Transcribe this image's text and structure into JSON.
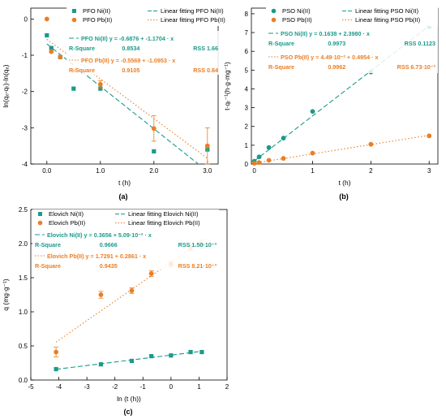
{
  "figure": {
    "colors": {
      "ni": "#1a9a8a",
      "pb": "#ec7d22",
      "axis": "#000000"
    }
  },
  "chart_data": [
    {
      "panel": "a",
      "caption": "(a)",
      "type": "scatter",
      "xlabel": "t (h)",
      "ylabel": "ln(qₑ-qₜ)-ln(qₑ)",
      "xlim": [
        -0.3,
        3.2
      ],
      "ylim": [
        -4,
        0.3
      ],
      "xticks": [
        0.0,
        1.0,
        2.0,
        3.0
      ],
      "xtick_labels": [
        "0.0",
        "1.0",
        "2.0",
        "3.0"
      ],
      "yticks": [
        -4,
        -3,
        -2,
        -1,
        0
      ],
      "ytick_labels": [
        "-4",
        "-3",
        "-2",
        "-1",
        "0"
      ],
      "series": [
        {
          "name": "PFO Ni(II)",
          "marker": "square",
          "color": "#1a9a8a",
          "x": [
            0.0,
            0.083,
            0.25,
            0.5,
            1.0,
            2.0,
            3.0
          ],
          "y": [
            -0.45,
            -0.8,
            -1.05,
            -1.92,
            -1.92,
            -3.65,
            -3.6
          ]
        },
        {
          "name": "PFO Pb(II)",
          "marker": "circle",
          "color": "#ec7d22",
          "x": [
            0.0,
            0.083,
            0.25,
            0.5,
            1.0,
            2.0,
            3.0
          ],
          "y": [
            0.0,
            -0.9,
            -1.05,
            -1.42,
            -1.8,
            -3.02,
            -3.5
          ],
          "err": [
            0,
            0,
            0,
            0,
            0.1,
            0.35,
            0.5
          ]
        }
      ],
      "fits": [
        {
          "name": "Linear fitting PFO Ni(II)",
          "style": "dashed",
          "color": "#1a9a8a",
          "intercept": -0.6876,
          "slope": -1.1704,
          "x_range": [
            0.0,
            3.0
          ]
        },
        {
          "name": "Linear fitting PFO Pb(II)",
          "style": "dotted",
          "color": "#ec7d22",
          "intercept": -0.5569,
          "slope": -1.0953,
          "x_range": [
            0.0,
            3.0
          ]
        }
      ],
      "legend": [
        "PFO Ni(II)",
        "Linear fitting PFO Ni(II)",
        "PFO Pb(II)",
        "Linear fitting PFO Pb(II)"
      ],
      "stats": [
        {
          "eq": "PFO Ni(II) y = -0.6876 + -1.1704 · x",
          "r2_label": "R-Square",
          "r2": "0.8534",
          "rss_label": "RSS",
          "rss": "1.66",
          "color": "#1a9a8a"
        },
        {
          "eq": "PFO Pb(II) y = -0.5569 + -1.0953 · x",
          "r2_label": "R-Square",
          "r2": "0.9105",
          "rss_label": "RSS",
          "rss": "0.84",
          "color": "#ec7d22"
        }
      ]
    },
    {
      "panel": "b",
      "caption": "(b)",
      "type": "scatter",
      "xlabel": "t (h)",
      "ylabel": "t·qₜ⁻¹(h·g·mg⁻¹)",
      "xlim": [
        -0.05,
        3.15
      ],
      "ylim": [
        0,
        8.3
      ],
      "xticks": [
        0,
        1,
        2,
        3
      ],
      "xtick_labels": [
        "0",
        "1",
        "2",
        "3"
      ],
      "yticks": [
        0,
        1,
        2,
        3,
        4,
        5,
        6,
        7,
        8
      ],
      "ytick_labels": [
        "0",
        "1",
        "2",
        "3",
        "4",
        "5",
        "6",
        "7",
        "8"
      ],
      "series": [
        {
          "name": "PSO Ni(II)",
          "marker": "circle",
          "color": "#1a9a8a",
          "x": [
            0.0,
            0.083,
            0.25,
            0.5,
            1.0,
            2.0,
            3.0
          ],
          "y": [
            0.15,
            0.38,
            0.88,
            1.38,
            2.8,
            4.9,
            7.3
          ]
        },
        {
          "name": "PSO Pb(II)",
          "marker": "circle",
          "color": "#ec7d22",
          "x": [
            0.0,
            0.083,
            0.25,
            0.5,
            1.0,
            2.0,
            3.0
          ],
          "y": [
            0.04,
            0.08,
            0.2,
            0.3,
            0.58,
            1.05,
            1.5
          ]
        }
      ],
      "fits": [
        {
          "name": "Linear fitting PSO Ni(II)",
          "style": "dashed",
          "color": "#1a9a8a",
          "intercept": 0.1638,
          "slope": 2.398,
          "x_range": [
            0.0,
            3.0
          ]
        },
        {
          "name": "Linear fitting PSO Pb(II)",
          "style": "dotted",
          "color": "#ec7d22",
          "intercept": 0.0449,
          "slope": 0.4954,
          "x_range": [
            0.0,
            3.0
          ]
        }
      ],
      "legend": [
        "PSO Ni(II)",
        "Linear fitting PSO Ni(II)",
        "PSO Pb(II)",
        "Linear fitting PSO Pb(II)"
      ],
      "stats": [
        {
          "eq": "PSO Ni(II) y = 0.1638 + 2.3980 · x",
          "r2_label": "R-Square",
          "r2": "0.9973",
          "rss_label": "RSS",
          "rss": "0.1123",
          "color": "#1a9a8a"
        },
        {
          "eq": "PSO Pb(II) y = 4.49·10⁻² + 0.4954 · x",
          "r2_label": "R-Square",
          "r2": "0.9962",
          "rss_label": "RSS",
          "rss": "6.73·10⁻³",
          "color": "#ec7d22"
        }
      ]
    },
    {
      "panel": "c",
      "caption": "(c)",
      "type": "scatter",
      "xlabel": "ln (t (h))",
      "ylabel": "q (mg·g⁻¹)",
      "xlim": [
        -5,
        2
      ],
      "ylim": [
        0,
        2.5
      ],
      "xticks": [
        -5,
        -4,
        -3,
        -2,
        -1,
        0,
        1,
        2
      ],
      "xtick_labels": [
        "-5",
        "-4",
        "-3",
        "-2",
        "-1",
        "0",
        "1",
        "2"
      ],
      "yticks": [
        0.0,
        0.5,
        1.0,
        1.5,
        2.0,
        2.5
      ],
      "ytick_labels": [
        "0.0",
        "0.5",
        "1.0",
        "1.5",
        "2.0",
        "2.5"
      ],
      "series": [
        {
          "name": "Elovich Ni(II)",
          "marker": "square",
          "color": "#1a9a8a",
          "x": [
            -4.1,
            -2.5,
            -1.4,
            -0.7,
            0.0,
            0.7,
            1.1
          ],
          "y": [
            0.16,
            0.23,
            0.28,
            0.35,
            0.36,
            0.41,
            0.41
          ]
        },
        {
          "name": "Elovich Pb(II)",
          "marker": "circle",
          "color": "#ec7d22",
          "x": [
            -4.1,
            -2.5,
            -1.4,
            -0.7,
            0.0,
            0.7,
            1.1
          ],
          "y": [
            0.41,
            1.25,
            1.31,
            1.56,
            1.7,
            1.94,
            1.99
          ],
          "err": [
            0.07,
            0.05,
            0.04,
            0.04,
            0.04,
            0.04,
            0.06
          ]
        }
      ],
      "fits": [
        {
          "name": "Linear fitting Elovich Ni(II)",
          "style": "dashed",
          "color": "#1a9a8a",
          "intercept": 0.3656,
          "slope": 0.0509,
          "x_range": [
            -4.1,
            1.1
          ]
        },
        {
          "name": "Linear fitting Elovich Pb(II)",
          "style": "dotted",
          "color": "#ec7d22",
          "intercept": 1.7291,
          "slope": 0.2861,
          "x_range": [
            -4.1,
            1.1
          ]
        }
      ],
      "legend": [
        "Elovich Ni(II)",
        "Linear fitting Elovich Ni(II)",
        "Elovich Pb(II)",
        "Linear fitting Elovich Pb(II)"
      ],
      "stats": [
        {
          "eq": "Elovich Ni(II) y = 0.3656 + 5.09·10⁻² · x",
          "r2_label": "R-Square",
          "r2": "0.9666",
          "rss_label": "RSS",
          "rss": "1.50·10⁻³",
          "color": "#1a9a8a"
        },
        {
          "eq": "Elovich Pb(II) y = 1.7291 + 0.2861 · x",
          "r2_label": "R-Square",
          "r2": "0.9435",
          "rss_label": "RSS",
          "rss": "8.21·10⁻³",
          "color": "#ec7d22"
        }
      ]
    }
  ]
}
